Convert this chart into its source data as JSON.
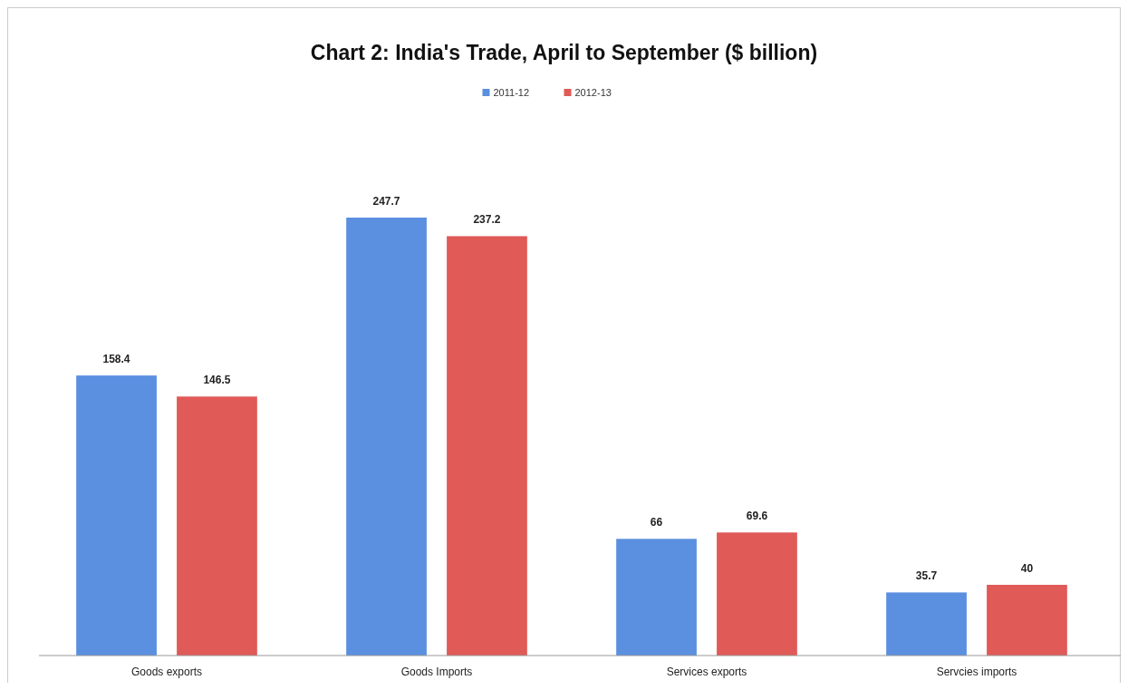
{
  "chart_data": {
    "type": "bar",
    "title": "Chart 2: India's Trade, April to September ($ billion)",
    "categories": [
      "Goods exports",
      "Goods Imports",
      "Services exports",
      "Servcies imports"
    ],
    "series": [
      {
        "name": "2011-12",
        "color": "#5b8fe0",
        "values": [
          158.4,
          247.7,
          66,
          35.7
        ]
      },
      {
        "name": "2012-13",
        "color": "#e05a57",
        "values": [
          146.5,
          237.2,
          69.6,
          40
        ]
      }
    ],
    "data_labels": true,
    "legend": "top"
  }
}
